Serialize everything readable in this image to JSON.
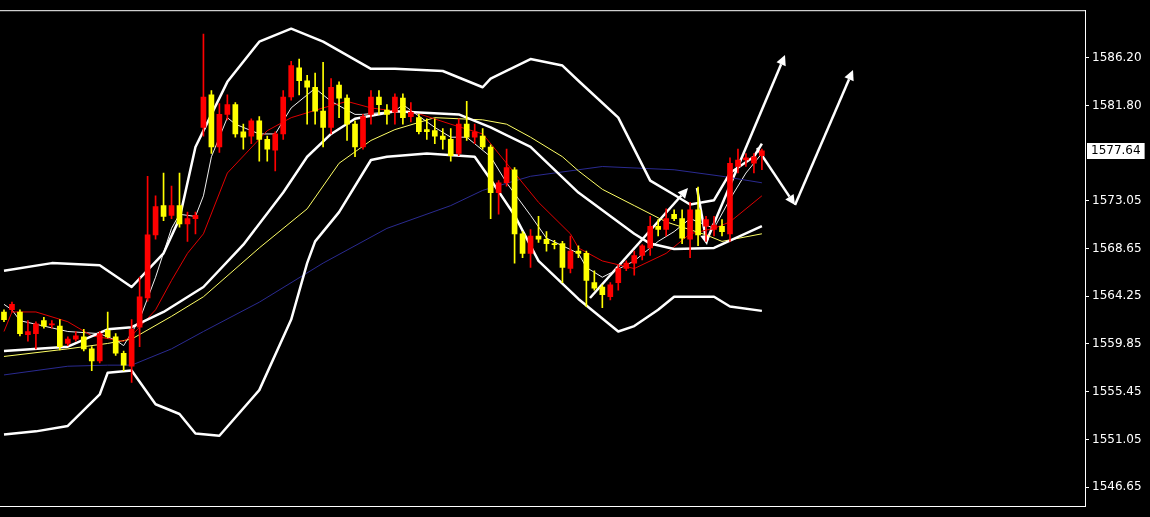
{
  "chart_data": {
    "type": "candlestick",
    "categories": [
      null,
      null,
      null,
      null,
      null,
      null,
      null,
      null,
      null,
      null,
      null,
      null,
      null,
      null,
      null,
      null,
      null,
      null,
      null,
      null,
      null,
      null,
      null,
      null,
      null,
      null,
      null,
      null,
      null,
      null,
      null,
      null,
      null,
      null,
      null,
      null,
      null,
      null,
      null,
      null,
      null,
      null,
      null,
      null,
      null,
      null,
      null,
      null,
      null,
      null,
      null,
      null,
      null,
      null,
      null,
      null,
      null,
      null,
      null,
      null,
      null,
      null,
      null,
      null,
      null,
      null,
      null,
      null,
      null,
      null,
      null,
      null,
      null,
      null,
      null,
      null,
      null,
      null,
      null,
      null,
      null,
      null,
      null,
      null,
      null,
      null,
      null,
      null,
      null,
      null,
      null,
      null,
      null,
      null,
      null,
      null,
      null,
      null,
      null,
      null,
      null,
      null,
      null,
      null,
      null,
      null,
      null,
      null,
      null,
      null,
      null,
      null,
      null,
      null,
      null,
      null,
      null,
      null,
      null,
      null,
      null,
      null,
      null,
      null,
      null,
      null,
      null,
      null,
      null,
      null,
      null,
      null,
      null,
      null,
      null,
      null
    ],
    "ohlc": [
      [
        1562.8,
        1563.0,
        1561.9,
        1562.1
      ],
      [
        1563.0,
        1563.7,
        1562.8,
        1563.5
      ],
      [
        1562.8,
        1563.0,
        1560.6,
        1560.8
      ],
      [
        1560.7,
        1562.0,
        1560.1,
        1561.0
      ],
      [
        1560.8,
        1561.9,
        1559.4,
        1561.7
      ],
      [
        1562.0,
        1562.3,
        1561.3,
        1561.5
      ],
      [
        1561.6,
        1562.0,
        1561.3,
        1561.7
      ],
      [
        1561.5,
        1562.1,
        1559.3,
        1559.6
      ],
      [
        1559.9,
        1560.5,
        1559.7,
        1560.3
      ],
      [
        1560.3,
        1561.0,
        1560.1,
        1560.6
      ],
      [
        1560.5,
        1561.2,
        1559.2,
        1559.4
      ],
      [
        1559.4,
        1559.6,
        1557.4,
        1558.3
      ],
      [
        1558.3,
        1561.0,
        1558.1,
        1560.8
      ],
      [
        1561.1,
        1562.8,
        1560.4,
        1560.5
      ],
      [
        1560.5,
        1560.8,
        1558.8,
        1559.0
      ],
      [
        1559.0,
        1559.2,
        1557.4,
        1557.9
      ],
      [
        1557.8,
        1562.1,
        1556.3,
        1561.2
      ],
      [
        1561.4,
        1566.0,
        1559.6,
        1564.2
      ],
      [
        1564.1,
        1575.3,
        1563.8,
        1569.9
      ],
      [
        1569.9,
        1573.5,
        1569.5,
        1572.5
      ],
      [
        1572.6,
        1575.6,
        1571.2,
        1571.6
      ],
      [
        1571.7,
        1574.4,
        1571.4,
        1572.6
      ],
      [
        1572.6,
        1575.6,
        1570.6,
        1570.9
      ],
      [
        1570.9,
        1572.0,
        1569.3,
        1571.4
      ],
      [
        1571.4,
        1572.0,
        1570.0,
        1571.7
      ],
      [
        1579.8,
        1588.4,
        1579.0,
        1582.6
      ],
      [
        1582.8,
        1583.2,
        1577.4,
        1578.0
      ],
      [
        1578.0,
        1582.0,
        1577.5,
        1581.0
      ],
      [
        1581.0,
        1582.8,
        1580.5,
        1581.9
      ],
      [
        1581.9,
        1582.1,
        1578.9,
        1579.2
      ],
      [
        1579.4,
        1580.1,
        1577.8,
        1578.9
      ],
      [
        1579.0,
        1580.6,
        1578.3,
        1580.4
      ],
      [
        1580.4,
        1580.8,
        1576.7,
        1578.7
      ],
      [
        1578.7,
        1579.0,
        1576.7,
        1577.8
      ],
      [
        1577.7,
        1579.4,
        1575.8,
        1579.2
      ],
      [
        1579.2,
        1583.2,
        1578.7,
        1582.6
      ],
      [
        1582.6,
        1585.9,
        1582.3,
        1585.5
      ],
      [
        1585.3,
        1586.1,
        1582.8,
        1584.1
      ],
      [
        1584.1,
        1584.6,
        1580.1,
        1583.5
      ],
      [
        1583.5,
        1584.8,
        1580.1,
        1581.3
      ],
      [
        1581.3,
        1585.8,
        1578.0,
        1579.8
      ],
      [
        1579.8,
        1584.3,
        1579.2,
        1583.5
      ],
      [
        1583.7,
        1584.0,
        1580.7,
        1582.5
      ],
      [
        1582.5,
        1582.8,
        1578.6,
        1580.1
      ],
      [
        1580.1,
        1580.4,
        1577.1,
        1578.0
      ],
      [
        1578.0,
        1581.0,
        1577.8,
        1580.8
      ],
      [
        1581.0,
        1583.2,
        1580.1,
        1582.6
      ],
      [
        1582.6,
        1583.2,
        1581.0,
        1581.9
      ],
      [
        1581.4,
        1581.9,
        1580.1,
        1581.0
      ],
      [
        1581.2,
        1582.9,
        1580.1,
        1582.6
      ],
      [
        1582.5,
        1582.9,
        1580.1,
        1580.7
      ],
      [
        1580.8,
        1582.1,
        1580.3,
        1581.2
      ],
      [
        1580.7,
        1581.0,
        1579.2,
        1579.4
      ],
      [
        1579.6,
        1580.6,
        1578.7,
        1579.4
      ],
      [
        1579.5,
        1580.6,
        1578.3,
        1579.0
      ],
      [
        1579.0,
        1579.7,
        1577.8,
        1578.7
      ],
      [
        1578.7,
        1579.7,
        1576.7,
        1577.2
      ],
      [
        1577.4,
        1580.6,
        1577.2,
        1580.1
      ],
      [
        1580.1,
        1582.2,
        1578.6,
        1578.9
      ],
      [
        1578.9,
        1580.1,
        1578.3,
        1579.4
      ],
      [
        1579.0,
        1579.7,
        1577.8,
        1578.0
      ],
      [
        1578.0,
        1578.2,
        1571.4,
        1573.8
      ],
      [
        1573.8,
        1574.9,
        1571.8,
        1574.7
      ],
      [
        1574.7,
        1577.8,
        1574.4,
        1576.1
      ],
      [
        1575.9,
        1576.1,
        1567.3,
        1570.0
      ],
      [
        1570.0,
        1570.2,
        1567.8,
        1568.2
      ],
      [
        1568.2,
        1570.4,
        1566.9,
        1569.8
      ],
      [
        1569.8,
        1571.6,
        1569.2,
        1569.5
      ],
      [
        1569.5,
        1570.2,
        1568.4,
        1569.1
      ],
      [
        1569.1,
        1569.4,
        1568.6,
        1569.0
      ],
      [
        1569.1,
        1569.3,
        1565.5,
        1566.9
      ],
      [
        1566.8,
        1569.8,
        1566.4,
        1568.4
      ],
      [
        1568.4,
        1568.9,
        1567.8,
        1568.2
      ],
      [
        1568.2,
        1568.4,
        1563.3,
        1565.7
      ],
      [
        1565.5,
        1566.6,
        1564.8,
        1565.0
      ],
      [
        1565.1,
        1565.3,
        1563.2,
        1564.4
      ],
      [
        1564.2,
        1565.5,
        1563.9,
        1565.3
      ],
      [
        1565.5,
        1567.1,
        1564.8,
        1566.8
      ],
      [
        1566.8,
        1567.5,
        1566.6,
        1567.3
      ],
      [
        1567.3,
        1568.4,
        1566.2,
        1568.0
      ],
      [
        1568.0,
        1569.0,
        1567.6,
        1568.9
      ],
      [
        1568.7,
        1571.6,
        1568.0,
        1570.7
      ],
      [
        1570.7,
        1571.3,
        1569.8,
        1570.4
      ],
      [
        1570.4,
        1572.3,
        1569.8,
        1571.4
      ],
      [
        1571.8,
        1572.2,
        1571.2,
        1571.4
      ],
      [
        1571.4,
        1572.2,
        1569.1,
        1569.6
      ],
      [
        1569.5,
        1572.9,
        1567.8,
        1572.2
      ],
      [
        1572.2,
        1574.3,
        1568.9,
        1569.9
      ],
      [
        1570.7,
        1571.6,
        1569.3,
        1571.3
      ],
      [
        1570.4,
        1571.6,
        1569.8,
        1570.8
      ],
      [
        1570.7,
        1571.3,
        1569.8,
        1570.2
      ],
      [
        1570.0,
        1577.0,
        1569.3,
        1576.5
      ],
      [
        1576.2,
        1577.8,
        1575.6,
        1576.8
      ],
      [
        1576.8,
        1577.4,
        1576.2,
        1577.0
      ],
      [
        1576.5,
        1577.4,
        1575.6,
        1577.1
      ],
      [
        1577.2,
        1577.8,
        1575.9,
        1577.64
      ],
      null,
      null,
      null,
      null,
      null,
      null,
      null,
      null,
      null,
      null,
      null,
      null,
      null,
      null,
      null,
      null,
      null,
      null,
      null,
      null,
      null,
      null,
      null,
      null,
      null,
      null,
      null,
      null,
      null,
      null,
      null,
      null,
      null,
      null,
      null,
      null,
      null,
      null,
      null,
      null
    ],
    "colors": [
      "#ffff00",
      "#ff0000",
      "#ffff00",
      "#ff0000",
      "#ff0000",
      "#ffff00",
      "#ff0000",
      "#ffff00",
      "#ff0000",
      "#ff0000",
      "#ffff00",
      "#ffff00",
      "#ff0000",
      "#ffff00",
      "#ffff00",
      "#ffff00",
      "#ff0000",
      "#ff0000",
      "#ff0000",
      "#ff0000",
      "#ffff00",
      "#ff0000",
      "#ffff00",
      "#ff0000",
      "#ff0000",
      "#ff0000",
      "#ffff00",
      "#ff0000",
      "#ff0000",
      "#ffff00",
      "#ffff00",
      "#ff0000",
      "#ffff00",
      "#ffff00",
      "#ff0000",
      "#ff0000",
      "#ff0000",
      "#ffff00",
      "#ffff00",
      "#ffff00",
      "#ffff00",
      "#ff0000",
      "#ffff00",
      "#ffff00",
      "#ffff00",
      "#ff0000",
      "#ff0000",
      "#ffff00",
      "#ffff00",
      "#ff0000",
      "#ffff00",
      "#ff0000",
      "#ffff00",
      "#ffff00",
      "#ffff00",
      "#ffff00",
      "#ffff00",
      "#ff0000",
      "#ffff00",
      "#ff0000",
      "#ffff00",
      "#ffff00",
      "#ff0000",
      "#ff0000",
      "#ffff00",
      "#ffff00",
      "#ff0000",
      "#ffff00",
      "#ffff00",
      "#ffff00",
      "#ffff00",
      "#ff0000",
      "#ffff00",
      "#ffff00",
      "#ffff00",
      "#ffff00",
      "#ff0000",
      "#ff0000",
      "#ff0000",
      "#ff0000",
      "#ff0000",
      "#ff0000",
      "#ffff00",
      "#ff0000",
      "#ffff00",
      "#ffff00",
      "#ff0000",
      "#ffff00",
      "#ff0000",
      "#ff0000",
      "#ffff00",
      "#ff0000",
      "#ff0000",
      "#ff0000",
      "#ff0000",
      "#ff0000",
      null,
      null,
      null,
      null,
      null,
      null,
      null,
      null,
      null,
      null,
      null,
      null,
      null,
      null,
      null,
      null,
      null,
      null,
      null,
      null,
      null,
      null,
      null,
      null,
      null,
      null,
      null,
      null,
      null,
      null,
      null,
      null,
      null,
      null,
      null,
      null,
      null,
      null,
      null,
      null
    ],
    "series": [
      {
        "type": "line",
        "color": "#ffffff",
        "values": [
          1566.6,
          null,
          null,
          null,
          null,
          null,
          1567.3,
          null,
          null,
          null,
          null,
          null,
          1567.1,
          null,
          null,
          null,
          1565.1,
          null,
          null,
          null,
          1568.2,
          null,
          1571.4,
          null,
          1578.0,
          null,
          null,
          null,
          1584.0,
          null,
          null,
          null,
          1587.7,
          null,
          null,
          null,
          1588.9,
          null,
          null,
          null,
          1587.7,
          null,
          null,
          null,
          null,
          null,
          1585.2,
          null,
          null,
          1585.2,
          null,
          null,
          null,
          null,
          null,
          1585.0,
          null,
          null,
          null,
          null,
          1583.5,
          1584.3,
          null,
          null,
          null,
          null,
          1586.1,
          null,
          null,
          null,
          1585.5,
          null,
          1584.1,
          null,
          null,
          null,
          null,
          1580.7,
          null,
          null,
          null,
          1574.9,
          null,
          null,
          1573.6,
          null,
          1572.7,
          null,
          null,
          1573.1,
          null,
          1575.6,
          null,
          null,
          1577.1,
          1578.3,
          null,
          null,
          null,
          null,
          null,
          null,
          null,
          null,
          null,
          null,
          null,
          null,
          null,
          null,
          null,
          null,
          null,
          null,
          null,
          null,
          null,
          null,
          null,
          null,
          null,
          null,
          null,
          null,
          null,
          null,
          null,
          null,
          null,
          null,
          null,
          null,
          null,
          null,
          null,
          null
        ]
      },
      {
        "type": "line",
        "color": "#ffffff",
        "values": [
          1559.2,
          null,
          null,
          null,
          null,
          null,
          null,
          null,
          1559.6,
          null,
          null,
          null,
          null,
          1561.2,
          null,
          null,
          1561.4,
          null,
          null,
          null,
          1562.8,
          null,
          null,
          null,
          null,
          1565.1,
          null,
          null,
          null,
          null,
          1569.0,
          null,
          null,
          null,
          null,
          1573.8,
          null,
          null,
          1577.1,
          null,
          null,
          1579.2,
          null,
          null,
          1580.6,
          null,
          null,
          null,
          null,
          1581.3,
          null,
          null,
          null,
          null,
          null,
          null,
          null,
          1581.0,
          null,
          null,
          null,
          1579.8,
          null,
          null,
          null,
          null,
          1578.0,
          null,
          null,
          null,
          null,
          null,
          1573.8,
          null,
          null,
          null,
          null,
          null,
          null,
          1570.0,
          null,
          1569.1,
          null,
          null,
          1568.6,
          null,
          null,
          null,
          null,
          1568.7,
          null,
          null,
          null,
          null,
          null,
          1570.7,
          null,
          null,
          null,
          null,
          null,
          null,
          null,
          null,
          null,
          null,
          null,
          null,
          null,
          null,
          null,
          null,
          null,
          null,
          null,
          null,
          null,
          null,
          null,
          null,
          null,
          null,
          null,
          null,
          null,
          null,
          null,
          null,
          null,
          null,
          null,
          null,
          null,
          null,
          null,
          null
        ]
      },
      {
        "type": "line",
        "color": "#ffffff",
        "values": [
          1551.5,
          null,
          null,
          null,
          1551.8,
          null,
          null,
          null,
          1552.3,
          null,
          null,
          null,
          1555.2,
          1557.2,
          null,
          null,
          1557.4,
          null,
          null,
          1554.3,
          null,
          null,
          1553.4,
          null,
          1551.6,
          null,
          null,
          1551.4,
          null,
          null,
          null,
          null,
          1555.6,
          null,
          null,
          null,
          1562.1,
          null,
          1567.3,
          1569.3,
          null,
          null,
          1572.0,
          null,
          null,
          1575.6,
          1576.8,
          null,
          1577.1,
          null,
          null,
          null,
          null,
          1577.4,
          null,
          null,
          null,
          null,
          null,
          1577.1,
          null,
          1575.0,
          null,
          null,
          1571.7,
          null,
          null,
          1567.5,
          null,
          null,
          null,
          null,
          1564.0,
          null,
          1562.8,
          null,
          null,
          1561.0,
          null,
          1561.5,
          null,
          null,
          1563.0,
          null,
          1564.2,
          null,
          null,
          null,
          null,
          1564.2,
          null,
          1563.3,
          null,
          null,
          null,
          1562.9,
          null,
          null,
          null,
          null,
          null,
          null,
          null,
          null,
          null,
          null,
          null,
          null,
          null,
          null,
          null,
          null,
          null,
          null,
          null,
          null,
          null,
          null,
          null,
          null,
          null,
          null,
          null,
          null,
          null,
          null,
          null,
          null,
          null,
          null,
          null,
          null,
          null,
          null,
          null,
          null
        ]
      },
      {
        "type": "line",
        "color": "#e00000",
        "values": [
          1561.0,
          1562.8,
          null,
          null,
          1562.8,
          null,
          null,
          null,
          1561.9,
          null,
          null,
          1560.6,
          null,
          null,
          null,
          1560.1,
          1560.6,
          null,
          null,
          1563.0,
          null,
          1565.7,
          null,
          1568.2,
          null,
          1570.0,
          null,
          null,
          1575.6,
          null,
          null,
          null,
          null,
          1579.5,
          null,
          null,
          1580.7,
          null,
          null,
          null,
          1581.6,
          null,
          null,
          1582.2,
          null,
          null,
          1581.6,
          null,
          null,
          1581.3,
          null,
          1581.3,
          null,
          null,
          null,
          null,
          1580.1,
          null,
          null,
          null,
          1579.2,
          null,
          null,
          1576.5,
          null,
          null,
          null,
          1572.9,
          null,
          null,
          null,
          1570.0,
          1568.7,
          null,
          null,
          1567.5,
          null,
          null,
          null,
          1566.8,
          null,
          null,
          null,
          1568.2,
          null,
          null,
          1570.0,
          null,
          null,
          1570.5,
          null,
          1571.1,
          null,
          1572.3,
          null,
          1573.5,
          null,
          null,
          null,
          null,
          null,
          null,
          null,
          null,
          null,
          null,
          null,
          null,
          null,
          null,
          null,
          null,
          null,
          null,
          null,
          null,
          null,
          null,
          null,
          null,
          null,
          null,
          null,
          null,
          null,
          null,
          null,
          null,
          null,
          null,
          null,
          null,
          null,
          null,
          null,
          null
        ]
      },
      {
        "type": "line",
        "color": "#ffff66",
        "values": [
          1558.7,
          null,
          null,
          null,
          null,
          null,
          null,
          null,
          1559.4,
          null,
          null,
          null,
          null,
          1559.9,
          null,
          null,
          1560.3,
          null,
          null,
          null,
          null,
          1562.4,
          null,
          null,
          null,
          1564.2,
          null,
          null,
          null,
          null,
          null,
          null,
          1568.7,
          null,
          null,
          null,
          null,
          null,
          1572.3,
          null,
          null,
          null,
          1576.5,
          null,
          null,
          null,
          1578.6,
          null,
          null,
          1579.6,
          null,
          null,
          null,
          null,
          1580.7,
          null,
          null,
          null,
          null,
          null,
          1580.5,
          null,
          null,
          1580.1,
          null,
          null,
          1578.9,
          null,
          null,
          null,
          1577.1,
          null,
          1575.8,
          null,
          null,
          1574.1,
          null,
          null,
          null,
          1572.6,
          null,
          null,
          null,
          1571.1,
          null,
          null,
          null,
          null,
          1569.9,
          null,
          1569.3,
          null,
          null,
          null,
          null,
          1570.0,
          null,
          null,
          null,
          null,
          null,
          null,
          null,
          null,
          null,
          null,
          null,
          null,
          null,
          null,
          null,
          null,
          null,
          null,
          null,
          null,
          null,
          null,
          null,
          null,
          null,
          null,
          null,
          null,
          null,
          null,
          null,
          null,
          null,
          null,
          null,
          null,
          null,
          null,
          null,
          null
        ]
      },
      {
        "type": "line",
        "color": "#2a2a90",
        "values": [
          1557.0,
          null,
          null,
          null,
          null,
          null,
          null,
          null,
          1557.8,
          null,
          null,
          null,
          null,
          1557.9,
          null,
          null,
          1557.9,
          null,
          null,
          null,
          null,
          1559.4,
          null,
          null,
          null,
          1561.0,
          null,
          null,
          null,
          null,
          null,
          null,
          1563.7,
          null,
          null,
          null,
          null,
          null,
          null,
          null,
          1567.3,
          null,
          null,
          null,
          null,
          null,
          null,
          null,
          1570.5,
          null,
          null,
          null,
          null,
          null,
          null,
          null,
          1572.6,
          null,
          null,
          null,
          1574.0,
          null,
          null,
          null,
          null,
          null,
          1575.3,
          null,
          null,
          null,
          null,
          null,
          1575.9,
          null,
          null,
          1576.2,
          null,
          null,
          null,
          null,
          null,
          null,
          null,
          null,
          1575.9,
          null,
          null,
          null,
          null,
          null,
          1575.3,
          null,
          null,
          null,
          null,
          1574.7,
          null,
          null,
          null,
          null,
          null,
          null,
          null,
          null,
          null,
          null,
          null,
          null,
          null,
          null,
          null,
          null,
          null,
          null,
          null,
          null,
          null,
          null,
          null,
          null,
          null,
          null,
          null,
          null,
          null,
          null,
          null,
          null,
          null,
          null,
          null,
          null,
          null,
          null,
          null,
          null
        ]
      },
      {
        "type": "line",
        "color": "#f0f0f0",
        "values": [
          1563.5,
          1563.0,
          1562.0,
          null,
          null,
          null,
          null,
          null,
          1561.0,
          null,
          null,
          null,
          1560.8,
          null,
          1560.2,
          1559.7,
          null,
          1562.1,
          null,
          1566.0,
          null,
          1570.5,
          1571.8,
          null,
          1571.6,
          1573.5,
          1577.1,
          null,
          1580.7,
          1580.1,
          null,
          null,
          1579.2,
          null,
          1579.2,
          null,
          1581.6,
          null,
          null,
          1583.4,
          null,
          1582.2,
          null,
          null,
          1581.0,
          1581.0,
          null,
          null,
          null,
          1581.3,
          1581.9,
          null,
          null,
          null,
          1579.8,
          null,
          1578.9,
          null,
          1578.9,
          null,
          null,
          1577.1,
          null,
          1574.7,
          null,
          null,
          1571.7,
          null,
          1569.6,
          null,
          null,
          null,
          1568.2,
          1566.9,
          null,
          1566.0,
          null,
          null,
          null,
          1567.5,
          null,
          null,
          1569.3,
          null,
          1570.2,
          null,
          1571.4,
          null,
          null,
          1570.5,
          null,
          1573.2,
          null,
          1575.6,
          null,
          1577.4,
          null,
          null,
          null,
          null,
          null,
          null,
          null,
          null,
          null,
          null,
          null,
          null,
          null,
          null,
          null,
          null,
          null,
          null,
          null,
          null,
          null,
          null,
          null,
          null,
          null,
          null,
          null,
          null,
          null,
          null,
          null,
          null,
          null,
          null,
          null,
          null,
          null,
          null,
          null,
          null
        ]
      }
    ],
    "ylim": [
      1544.85,
      1590.6
    ],
    "yticks": [
      {
        "value": 1586.2,
        "label": "1586.20"
      },
      {
        "value": 1581.8,
        "label": "1581.80"
      },
      1573.05,
      1568.65,
      1564.25,
      1559.85,
      1555.45,
      1551.05,
      1546.65
    ],
    "annotations": [
      "1577.64"
    ],
    "tick_labels": "y",
    "legend": false
  }
}
